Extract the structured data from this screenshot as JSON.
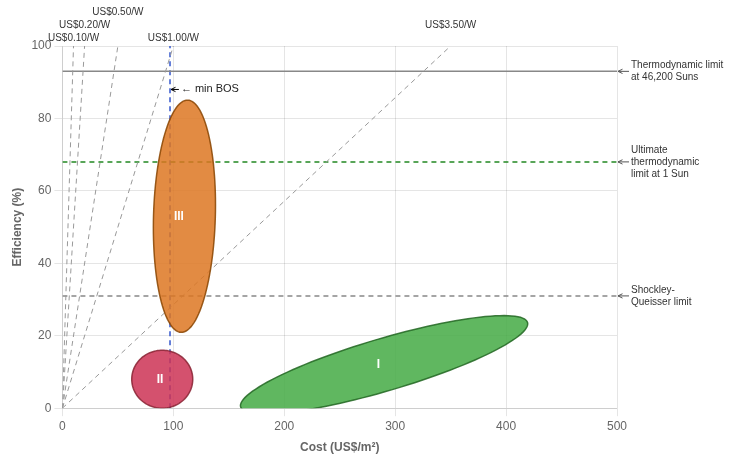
{
  "chart_data": {
    "type": "line",
    "xlabel": "Cost (US$/m²)",
    "ylabel": "Efficiency (%)",
    "xlim": [
      0,
      500
    ],
    "ylim": [
      0,
      100
    ],
    "xticks": [
      0,
      100,
      200,
      300,
      400,
      500
    ],
    "yticks": [
      0,
      20,
      40,
      60,
      80,
      100
    ],
    "grid": true,
    "series": [
      {
        "name": "US$0.10/W",
        "type": "line",
        "x": [
          0,
          10
        ],
        "values": [
          0,
          100
        ],
        "color": "#999999",
        "line_style": "dashed"
      },
      {
        "name": "US$0.20/W",
        "type": "line",
        "x": [
          0,
          20
        ],
        "values": [
          0,
          100
        ],
        "color": "#999999",
        "line_style": "dashed"
      },
      {
        "name": "US$0.50/W",
        "type": "line",
        "x": [
          0,
          50
        ],
        "values": [
          0,
          100
        ],
        "color": "#999999",
        "line_style": "dashed"
      },
      {
        "name": "US$1.00/W",
        "type": "line",
        "x": [
          0,
          100
        ],
        "values": [
          0,
          100
        ],
        "color": "#999999",
        "line_style": "dashed"
      },
      {
        "name": "US$3.50/W",
        "type": "line",
        "x": [
          0,
          350
        ],
        "values": [
          0,
          100
        ],
        "color": "#999999",
        "line_style": "dashed"
      },
      {
        "name": "Thermodynamic limit\nat 46,200 Suns",
        "type": "hline",
        "y": 93,
        "color": "#888888",
        "line_style": "solid"
      },
      {
        "name": "Ultimate\nthermodynamic\nlimit at 1 Sun",
        "type": "hline",
        "y": 68,
        "color": "#228822",
        "line_style": "dashed"
      },
      {
        "name": "Shockley-\nQueisser limit",
        "type": "hline",
        "y": 31,
        "color": "#888888",
        "line_style": "dashed"
      },
      {
        "name": "← min BOS",
        "type": "vline",
        "x": 97,
        "color": "#3355cc",
        "line_style": "dashed",
        "label_x": 105,
        "label_y": 88
      }
    ],
    "ellipses": [
      {
        "label": "I",
        "cx": 290,
        "cy": 12,
        "width": 260,
        "height": 15,
        "angle": 5,
        "color": "#44aa44",
        "edge_color": "#226622",
        "label_x": 285,
        "label_y": 12
      },
      {
        "label": "II",
        "cx": 90,
        "cy": 8,
        "width": 55,
        "height": 16,
        "angle": 0,
        "color": "#cc3355",
        "edge_color": "#882233",
        "label_x": 88,
        "label_y": 8
      },
      {
        "label": "III",
        "cx": 110,
        "cy": 53,
        "width": 55,
        "height": 65,
        "angle": -18,
        "color": "#dd7722",
        "edge_color": "#884400",
        "label_x": 105,
        "label_y": 53
      }
    ]
  }
}
